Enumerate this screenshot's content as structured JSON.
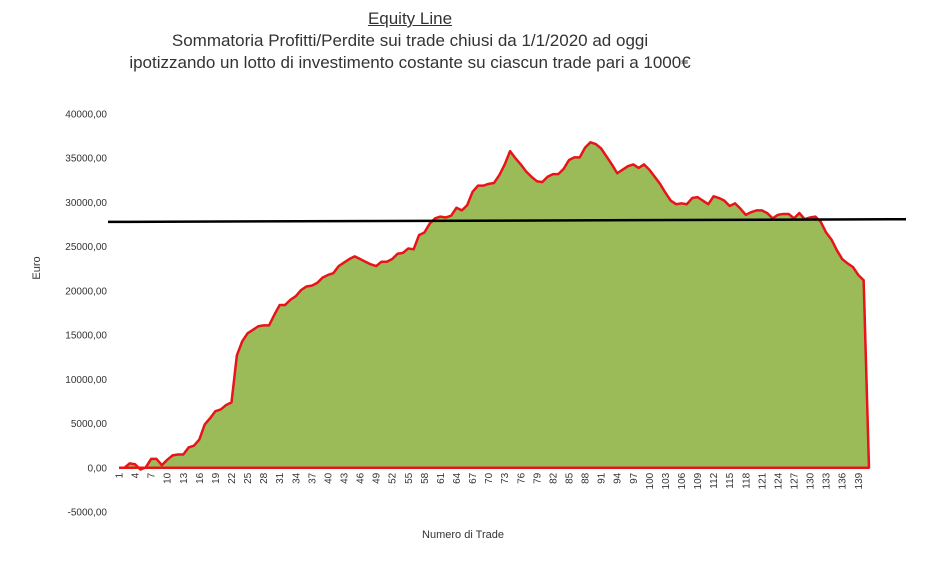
{
  "chart_data": {
    "type": "area",
    "title": "Equity Line",
    "subtitle_lines": [
      "Sommatoria Profitti/Perdite sui trade chiusi da 1/1/2020 ad oggi",
      "ipotizzando un lotto di investimento costante su ciascun trade pari a 1000€"
    ],
    "xlabel": "Numero di Trade",
    "ylabel": "Euro",
    "ylim": [
      -5000,
      40000
    ],
    "xlim": [
      1,
      141
    ],
    "y_ticks": [
      "40000,00",
      "35000,00",
      "30000,00",
      "25000,00",
      "20000,00",
      "15000,00",
      "10000,00",
      "5000,00",
      "0,00",
      "-5000,00"
    ],
    "y_tick_values": [
      40000,
      35000,
      30000,
      25000,
      20000,
      15000,
      10000,
      5000,
      0,
      -5000
    ],
    "x_ticks": [
      1,
      4,
      7,
      10,
      13,
      16,
      19,
      22,
      25,
      28,
      31,
      34,
      37,
      40,
      43,
      46,
      49,
      52,
      55,
      58,
      61,
      64,
      67,
      70,
      73,
      76,
      79,
      82,
      85,
      88,
      91,
      94,
      97,
      100,
      103,
      106,
      109,
      112,
      115,
      118,
      121,
      124,
      127,
      130,
      133,
      136,
      139
    ],
    "fill_color": "#9bbb59",
    "line_color": "#e8141a",
    "reference_line": {
      "value_at_start": 27800,
      "value_at_end": 28100,
      "color": "#000000"
    },
    "series": [
      {
        "x": [
          1,
          2,
          3,
          4,
          5,
          6,
          7,
          8,
          9,
          10,
          11,
          12,
          13,
          14,
          15,
          16,
          17,
          18,
          19,
          20,
          21,
          22,
          23,
          24,
          25,
          26,
          27,
          28,
          29,
          30,
          31,
          32,
          33,
          34,
          35,
          36,
          37,
          38,
          39,
          40,
          41,
          42,
          43,
          44,
          45,
          46,
          47,
          48,
          49,
          50,
          51,
          52,
          53,
          54,
          55,
          56,
          57,
          58,
          59,
          60,
          61,
          62,
          63,
          64,
          65,
          66,
          67,
          68,
          69,
          70,
          71,
          72,
          73,
          74,
          75,
          76,
          77,
          78,
          79,
          80,
          81,
          82,
          83,
          84,
          85,
          86,
          87,
          88,
          89,
          90,
          91,
          92,
          93,
          94,
          95,
          96,
          97,
          98,
          99,
          100,
          101,
          102,
          103,
          104,
          105,
          106,
          107,
          108,
          109,
          110,
          111,
          112,
          113,
          114,
          115,
          116,
          117,
          118,
          119,
          120,
          121,
          122,
          123,
          124,
          125,
          126,
          127,
          128,
          129,
          130,
          131,
          132,
          133,
          134,
          135,
          136,
          137,
          138,
          139,
          140,
          141
        ],
        "values": [
          0,
          0,
          500,
          400,
          -200,
          50,
          1000,
          1000,
          300,
          900,
          1400,
          1500,
          1500,
          2300,
          2500,
          3200,
          4900,
          5600,
          6400,
          6600,
          7100,
          7400,
          12700,
          14300,
          15200,
          15600,
          16000,
          16100,
          16100,
          17300,
          18400,
          18400,
          19000,
          19400,
          20100,
          20500,
          20600,
          20900,
          21500,
          21800,
          22000,
          22800,
          23200,
          23600,
          23900,
          23600,
          23300,
          23000,
          22800,
          23300,
          23300,
          23600,
          24200,
          24300,
          24800,
          24700,
          26300,
          26600,
          27600,
          28200,
          28400,
          28300,
          28500,
          29400,
          29100,
          29700,
          31200,
          31900,
          31900,
          32100,
          32200,
          33100,
          34300,
          35800,
          35000,
          34300,
          33500,
          32900,
          32400,
          32300,
          32900,
          33200,
          33200,
          33800,
          34800,
          35100,
          35100,
          36200,
          36800,
          36600,
          36100,
          35200,
          34300,
          33300,
          33700,
          34100,
          34300,
          33900,
          34300,
          33700,
          32900,
          32100,
          31100,
          30200,
          29800,
          29900,
          29800,
          30500,
          30600,
          30200,
          29800,
          30700,
          30500,
          30200,
          29600,
          29900,
          29300,
          28600,
          28900,
          29100,
          29100,
          28800,
          28200,
          28600,
          28700,
          28700,
          28200,
          28800,
          28100,
          28300,
          28400,
          27800,
          26600,
          25800,
          24600,
          23600,
          23100,
          22700,
          21800,
          21200,
          0
        ]
      }
    ]
  }
}
